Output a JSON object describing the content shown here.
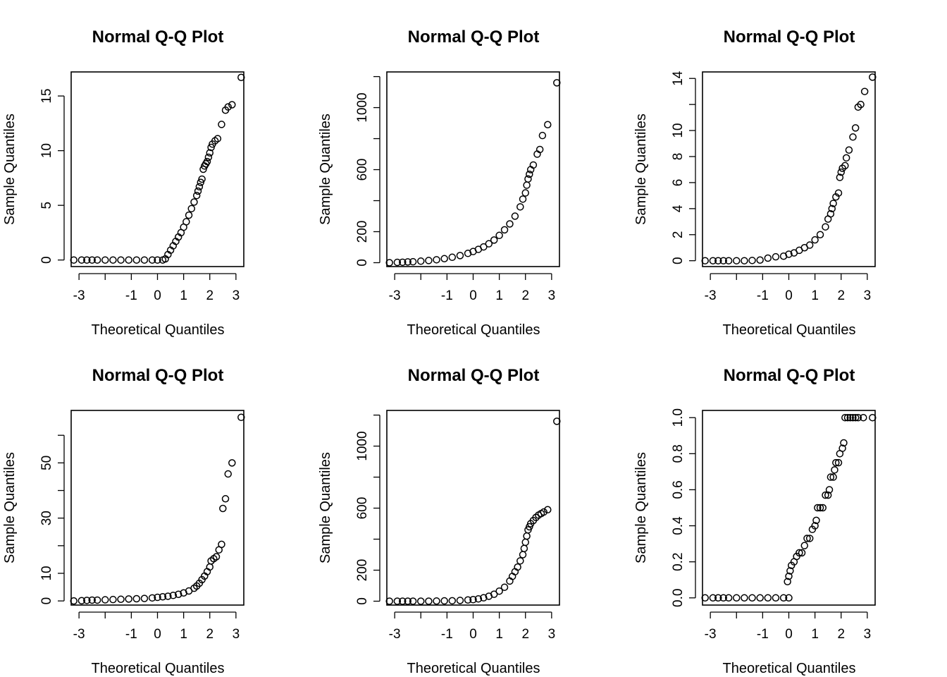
{
  "figure": {
    "layout": "2 rows x 3 columns",
    "background": "#ffffff",
    "point_color": "#000000",
    "marker": "open-circle"
  },
  "chart_data": [
    {
      "type": "scatter",
      "title": "Normal Q-Q Plot",
      "xlabel": "Theoretical Quantiles",
      "ylabel": "Sample Quantiles",
      "xlim": [
        -3.3,
        3.3
      ],
      "ylim": [
        -0.6,
        17.2
      ],
      "x_ticks": [
        -3,
        -2,
        -1,
        0,
        1,
        2,
        3
      ],
      "x_tick_labels": [
        "-3",
        "",
        "-1",
        "0",
        "1",
        "2",
        "3"
      ],
      "y_ticks": [
        0,
        5,
        10,
        15
      ],
      "y_tick_labels": [
        "0",
        "5",
        "10",
        "15"
      ],
      "points": [
        [
          -3.2,
          0
        ],
        [
          -2.9,
          0
        ],
        [
          -2.7,
          0
        ],
        [
          -2.5,
          0
        ],
        [
          -2.3,
          0
        ],
        [
          -2.0,
          0
        ],
        [
          -1.7,
          0
        ],
        [
          -1.4,
          0
        ],
        [
          -1.1,
          0
        ],
        [
          -0.8,
          0
        ],
        [
          -0.5,
          0
        ],
        [
          -0.2,
          0
        ],
        [
          0.0,
          0
        ],
        [
          0.2,
          0
        ],
        [
          0.3,
          0.1
        ],
        [
          0.4,
          0.5
        ],
        [
          0.5,
          0.9
        ],
        [
          0.6,
          1.3
        ],
        [
          0.7,
          1.7
        ],
        [
          0.8,
          2.1
        ],
        [
          0.9,
          2.5
        ],
        [
          1.0,
          3.0
        ],
        [
          1.1,
          3.5
        ],
        [
          1.2,
          4.1
        ],
        [
          1.3,
          4.7
        ],
        [
          1.4,
          5.3
        ],
        [
          1.5,
          5.9
        ],
        [
          1.55,
          6.3
        ],
        [
          1.6,
          6.7
        ],
        [
          1.65,
          7.1
        ],
        [
          1.7,
          7.4
        ],
        [
          1.75,
          8.3
        ],
        [
          1.8,
          8.6
        ],
        [
          1.85,
          8.8
        ],
        [
          1.9,
          9.0
        ],
        [
          1.95,
          9.4
        ],
        [
          2.0,
          9.8
        ],
        [
          2.05,
          10.3
        ],
        [
          2.1,
          10.6
        ],
        [
          2.2,
          10.9
        ],
        [
          2.3,
          11.1
        ],
        [
          2.45,
          12.4
        ],
        [
          2.6,
          13.7
        ],
        [
          2.7,
          14.0
        ],
        [
          2.85,
          14.2
        ],
        [
          3.2,
          16.7
        ]
      ]
    },
    {
      "type": "scatter",
      "title": "Normal Q-Q Plot",
      "xlabel": "Theoretical Quantiles",
      "ylabel": "Sample Quantiles",
      "xlim": [
        -3.3,
        3.3
      ],
      "ylim": [
        -25,
        1230
      ],
      "x_ticks": [
        -3,
        -2,
        -1,
        0,
        1,
        2,
        3
      ],
      "x_tick_labels": [
        "-3",
        "",
        "-1",
        "0",
        "1",
        "2",
        "3"
      ],
      "y_ticks": [
        0,
        200,
        400,
        600,
        800,
        1000,
        1200
      ],
      "y_tick_labels": [
        "0",
        "200",
        "",
        "600",
        "",
        "1000",
        ""
      ],
      "points": [
        [
          -3.2,
          0
        ],
        [
          -2.9,
          2
        ],
        [
          -2.7,
          3
        ],
        [
          -2.5,
          5
        ],
        [
          -2.3,
          6
        ],
        [
          -2.0,
          10
        ],
        [
          -1.7,
          14
        ],
        [
          -1.4,
          19
        ],
        [
          -1.1,
          26
        ],
        [
          -0.8,
          35
        ],
        [
          -0.5,
          46
        ],
        [
          -0.2,
          60
        ],
        [
          0.0,
          72
        ],
        [
          0.2,
          86
        ],
        [
          0.4,
          102
        ],
        [
          0.6,
          122
        ],
        [
          0.8,
          146
        ],
        [
          1.0,
          176
        ],
        [
          1.2,
          212
        ],
        [
          1.4,
          250
        ],
        [
          1.6,
          300
        ],
        [
          1.8,
          360
        ],
        [
          1.9,
          410
        ],
        [
          2.0,
          450
        ],
        [
          2.05,
          500
        ],
        [
          2.1,
          540
        ],
        [
          2.15,
          570
        ],
        [
          2.2,
          600
        ],
        [
          2.3,
          630
        ],
        [
          2.45,
          700
        ],
        [
          2.55,
          730
        ],
        [
          2.65,
          820
        ],
        [
          2.85,
          890
        ],
        [
          3.2,
          1160
        ]
      ]
    },
    {
      "type": "scatter",
      "title": "Normal Q-Q Plot",
      "xlabel": "Theoretical Quantiles",
      "ylabel": "Sample Quantiles",
      "xlim": [
        -3.3,
        3.3
      ],
      "ylim": [
        -0.45,
        14.5
      ],
      "x_ticks": [
        -3,
        -2,
        -1,
        0,
        1,
        2,
        3
      ],
      "x_tick_labels": [
        "-3",
        "",
        "-1",
        "0",
        "1",
        "2",
        "3"
      ],
      "y_ticks": [
        0,
        2,
        4,
        6,
        8,
        10,
        12,
        14
      ],
      "y_tick_labels": [
        "0",
        "2",
        "4",
        "6",
        "8",
        "10",
        "",
        "14"
      ],
      "points": [
        [
          -3.2,
          0
        ],
        [
          -2.9,
          0
        ],
        [
          -2.7,
          0
        ],
        [
          -2.5,
          0
        ],
        [
          -2.3,
          0
        ],
        [
          -2.0,
          0
        ],
        [
          -1.7,
          0
        ],
        [
          -1.4,
          0.02
        ],
        [
          -1.1,
          0.05
        ],
        [
          -0.8,
          0.2
        ],
        [
          -0.5,
          0.3
        ],
        [
          -0.2,
          0.35
        ],
        [
          0.0,
          0.5
        ],
        [
          0.2,
          0.6
        ],
        [
          0.4,
          0.8
        ],
        [
          0.6,
          1.0
        ],
        [
          0.8,
          1.2
        ],
        [
          1.0,
          1.6
        ],
        [
          1.2,
          2.0
        ],
        [
          1.4,
          2.6
        ],
        [
          1.5,
          3.2
        ],
        [
          1.6,
          3.6
        ],
        [
          1.65,
          4.0
        ],
        [
          1.7,
          4.4
        ],
        [
          1.8,
          4.9
        ],
        [
          1.9,
          5.2
        ],
        [
          1.95,
          6.4
        ],
        [
          2.0,
          6.8
        ],
        [
          2.05,
          7.1
        ],
        [
          2.15,
          7.3
        ],
        [
          2.2,
          7.9
        ],
        [
          2.3,
          8.5
        ],
        [
          2.45,
          9.5
        ],
        [
          2.55,
          10.2
        ],
        [
          2.65,
          11.8
        ],
        [
          2.75,
          12.0
        ],
        [
          2.9,
          13.0
        ],
        [
          3.2,
          14.1
        ]
      ]
    },
    {
      "type": "scatter",
      "title": "Normal Q-Q Plot",
      "xlabel": "Theoretical Quantiles",
      "ylabel": "Sample Quantiles",
      "xlim": [
        -3.3,
        3.3
      ],
      "ylim": [
        -1.5,
        69
      ],
      "x_ticks": [
        -3,
        -2,
        -1,
        0,
        1,
        2,
        3
      ],
      "x_tick_labels": [
        "-3",
        "",
        "-1",
        "0",
        "1",
        "2",
        "3"
      ],
      "y_ticks": [
        0,
        10,
        20,
        30,
        40,
        50,
        60
      ],
      "y_tick_labels": [
        "0",
        "10",
        "",
        "30",
        "",
        "50",
        ""
      ],
      "points": [
        [
          -3.2,
          0
        ],
        [
          -2.9,
          0.1
        ],
        [
          -2.7,
          0.2
        ],
        [
          -2.5,
          0.3
        ],
        [
          -2.3,
          0.3
        ],
        [
          -2.0,
          0.4
        ],
        [
          -1.7,
          0.5
        ],
        [
          -1.4,
          0.6
        ],
        [
          -1.1,
          0.7
        ],
        [
          -0.8,
          0.8
        ],
        [
          -0.5,
          0.9
        ],
        [
          -0.2,
          1.1
        ],
        [
          0.0,
          1.3
        ],
        [
          0.2,
          1.5
        ],
        [
          0.4,
          1.7
        ],
        [
          0.6,
          2.0
        ],
        [
          0.8,
          2.4
        ],
        [
          1.0,
          2.9
        ],
        [
          1.2,
          3.6
        ],
        [
          1.4,
          4.6
        ],
        [
          1.5,
          5.4
        ],
        [
          1.6,
          6.4
        ],
        [
          1.7,
          7.7
        ],
        [
          1.8,
          9.0
        ],
        [
          1.9,
          10.6
        ],
        [
          2.0,
          12.3
        ],
        [
          2.05,
          14.5
        ],
        [
          2.15,
          15.3
        ],
        [
          2.25,
          16.0
        ],
        [
          2.35,
          18.5
        ],
        [
          2.45,
          20.5
        ],
        [
          2.5,
          33.5
        ],
        [
          2.6,
          37.0
        ],
        [
          2.7,
          46.0
        ],
        [
          2.85,
          50.0
        ],
        [
          3.2,
          66.5
        ]
      ]
    },
    {
      "type": "scatter",
      "title": "Normal Q-Q Plot",
      "xlabel": "Theoretical Quantiles",
      "ylabel": "Sample Quantiles",
      "xlim": [
        -3.3,
        3.3
      ],
      "ylim": [
        -25,
        1230
      ],
      "x_ticks": [
        -3,
        -2,
        -1,
        0,
        1,
        2,
        3
      ],
      "x_tick_labels": [
        "-3",
        "",
        "-1",
        "0",
        "1",
        "2",
        "3"
      ],
      "y_ticks": [
        0,
        200,
        400,
        600,
        800,
        1000,
        1200
      ],
      "y_tick_labels": [
        "0",
        "200",
        "",
        "600",
        "",
        "1000",
        ""
      ],
      "points": [
        [
          -3.2,
          0
        ],
        [
          -2.9,
          0
        ],
        [
          -2.7,
          0
        ],
        [
          -2.5,
          0
        ],
        [
          -2.3,
          0
        ],
        [
          -2.0,
          0
        ],
        [
          -1.7,
          0
        ],
        [
          -1.4,
          1
        ],
        [
          -1.1,
          2
        ],
        [
          -0.8,
          3
        ],
        [
          -0.5,
          5
        ],
        [
          -0.2,
          8
        ],
        [
          0.0,
          10
        ],
        [
          0.2,
          15
        ],
        [
          0.4,
          22
        ],
        [
          0.6,
          32
        ],
        [
          0.8,
          45
        ],
        [
          1.0,
          65
        ],
        [
          1.2,
          90
        ],
        [
          1.4,
          130
        ],
        [
          1.5,
          160
        ],
        [
          1.6,
          190
        ],
        [
          1.7,
          220
        ],
        [
          1.8,
          260
        ],
        [
          1.9,
          300
        ],
        [
          1.95,
          340
        ],
        [
          2.0,
          380
        ],
        [
          2.05,
          420
        ],
        [
          2.1,
          460
        ],
        [
          2.15,
          480
        ],
        [
          2.2,
          500
        ],
        [
          2.3,
          520
        ],
        [
          2.4,
          540
        ],
        [
          2.5,
          555
        ],
        [
          2.6,
          565
        ],
        [
          2.7,
          575
        ],
        [
          2.85,
          590
        ],
        [
          3.2,
          1160
        ]
      ]
    },
    {
      "type": "scatter",
      "title": "Normal Q-Q Plot",
      "xlabel": "Theoretical Quantiles",
      "ylabel": "Sample Quantiles",
      "xlim": [
        -3.3,
        3.3
      ],
      "ylim": [
        -0.04,
        1.04
      ],
      "x_ticks": [
        -3,
        -2,
        -1,
        0,
        1,
        2,
        3
      ],
      "x_tick_labels": [
        "-3",
        "",
        "-1",
        "0",
        "1",
        "2",
        "3"
      ],
      "y_ticks": [
        0,
        0.2,
        0.4,
        0.6,
        0.8,
        1
      ],
      "y_tick_labels": [
        "0.0",
        "0.2",
        "0.4",
        "0.6",
        "0.8",
        "1.0"
      ],
      "points": [
        [
          -3.2,
          0
        ],
        [
          -2.9,
          0
        ],
        [
          -2.7,
          0
        ],
        [
          -2.5,
          0
        ],
        [
          -2.3,
          0
        ],
        [
          -2.0,
          0
        ],
        [
          -1.7,
          0
        ],
        [
          -1.4,
          0
        ],
        [
          -1.1,
          0
        ],
        [
          -0.8,
          0
        ],
        [
          -0.5,
          0
        ],
        [
          -0.2,
          0
        ],
        [
          0.0,
          0
        ],
        [
          -0.05,
          0.09
        ],
        [
          0.0,
          0.12
        ],
        [
          0.05,
          0.15
        ],
        [
          0.1,
          0.18
        ],
        [
          0.2,
          0.2
        ],
        [
          0.3,
          0.23
        ],
        [
          0.4,
          0.25
        ],
        [
          0.5,
          0.25
        ],
        [
          0.6,
          0.29
        ],
        [
          0.7,
          0.33
        ],
        [
          0.8,
          0.33
        ],
        [
          0.9,
          0.38
        ],
        [
          1.0,
          0.4
        ],
        [
          1.05,
          0.43
        ],
        [
          1.1,
          0.5
        ],
        [
          1.2,
          0.5
        ],
        [
          1.3,
          0.5
        ],
        [
          1.4,
          0.57
        ],
        [
          1.5,
          0.57
        ],
        [
          1.55,
          0.6
        ],
        [
          1.6,
          0.67
        ],
        [
          1.7,
          0.67
        ],
        [
          1.75,
          0.71
        ],
        [
          1.8,
          0.75
        ],
        [
          1.9,
          0.75
        ],
        [
          1.95,
          0.8
        ],
        [
          2.05,
          0.83
        ],
        [
          2.1,
          0.86
        ],
        [
          2.15,
          1.0
        ],
        [
          2.25,
          1.0
        ],
        [
          2.35,
          1.0
        ],
        [
          2.45,
          1.0
        ],
        [
          2.55,
          1.0
        ],
        [
          2.65,
          1.0
        ],
        [
          2.85,
          1.0
        ],
        [
          3.2,
          1.0
        ]
      ]
    }
  ]
}
